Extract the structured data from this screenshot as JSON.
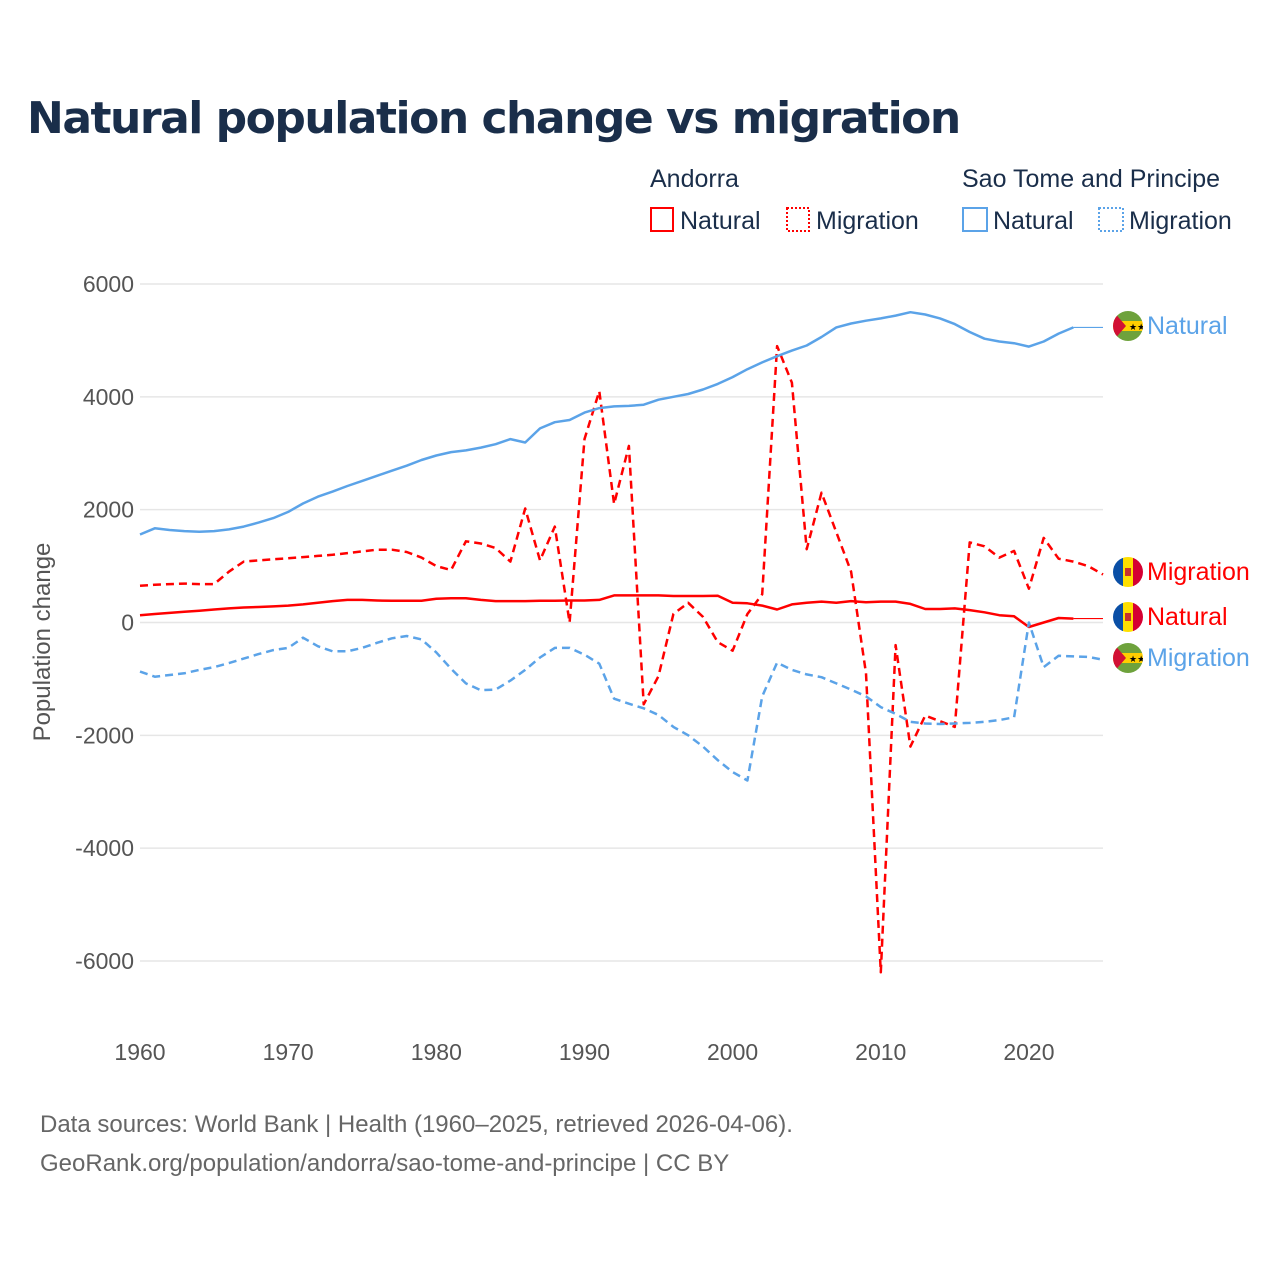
{
  "title": "Natural population change vs migration",
  "legend": {
    "groups": [
      {
        "name": "Andorra",
        "color": "#ff0000",
        "items": [
          "Natural",
          "Migration"
        ]
      },
      {
        "name": "Sao Tome and Principe",
        "color": "#5ba3e8",
        "items": [
          "Natural",
          "Migration"
        ]
      }
    ]
  },
  "footer": {
    "line1": "Data sources: World Bank | Health (1960–2025, retrieved 2026-04-06).",
    "line2": "GeoRank.org/population/andorra/sao-tome-and-principe | CC BY"
  },
  "chart_data": {
    "type": "line",
    "title": "Natural population change vs migration",
    "xlabel": "",
    "ylabel": "Population change",
    "xlim": [
      1960,
      2025
    ],
    "ylim": [
      -7000,
      6500
    ],
    "xticks": [
      1960,
      1970,
      1980,
      1990,
      2000,
      2010,
      2020
    ],
    "yticks": [
      6000,
      4000,
      2000,
      0,
      -2000,
      -4000,
      -6000
    ],
    "grid": true,
    "series": [
      {
        "name": "Andorra Natural",
        "label": "Natural",
        "country": "Andorra",
        "color": "#ff0000",
        "dash": false,
        "start": 1960,
        "extend_to": 2025,
        "values": [
          130,
          150,
          170,
          190,
          210,
          230,
          250,
          265,
          275,
          285,
          300,
          320,
          350,
          380,
          400,
          400,
          390,
          385,
          385,
          385,
          420,
          430,
          430,
          400,
          380,
          380,
          380,
          385,
          385,
          390,
          390,
          400,
          480,
          480,
          480,
          480,
          470,
          470,
          470,
          475,
          350,
          340,
          300,
          230,
          320,
          350,
          370,
          350,
          380,
          360,
          370,
          370,
          330,
          240,
          240,
          250,
          220,
          180,
          130,
          110,
          -80,
          0,
          80,
          70
        ]
      },
      {
        "name": "Andorra Migration",
        "label": "Migration",
        "country": "Andorra",
        "color": "#ff0000",
        "dash": true,
        "start": 1960,
        "values": [
          650,
          670,
          680,
          690,
          680,
          680,
          900,
          1080,
          1100,
          1120,
          1140,
          1160,
          1180,
          1200,
          1230,
          1260,
          1290,
          1290,
          1250,
          1150,
          1000,
          930,
          1440,
          1400,
          1320,
          1080,
          2020,
          1100,
          1700,
          0,
          3250,
          4100,
          2100,
          3130,
          -1450,
          -950,
          150,
          350,
          100,
          -350,
          -500,
          150,
          500,
          4900,
          4250,
          1300,
          2300,
          1600,
          900,
          -900,
          -6200,
          -400,
          -2200,
          -1650,
          -1750,
          -1850,
          1420,
          1350,
          1150,
          1270,
          600,
          1500,
          1130,
          1080,
          1000,
          850
        ]
      },
      {
        "name": "Sao Tome and Principe Natural",
        "label": "Natural",
        "country": "Sao Tome and Principe",
        "color": "#5ba3e8",
        "dash": false,
        "start": 1960,
        "extend_to": 2025,
        "values": [
          1560,
          1670,
          1640,
          1620,
          1610,
          1620,
          1650,
          1700,
          1770,
          1850,
          1960,
          2110,
          2230,
          2320,
          2420,
          2510,
          2600,
          2690,
          2780,
          2880,
          2960,
          3020,
          3050,
          3100,
          3160,
          3250,
          3190,
          3440,
          3550,
          3590,
          3720,
          3800,
          3830,
          3840,
          3860,
          3950,
          4000,
          4050,
          4130,
          4230,
          4350,
          4490,
          4610,
          4720,
          4820,
          4910,
          5060,
          5230,
          5300,
          5350,
          5390,
          5440,
          5500,
          5460,
          5390,
          5290,
          5150,
          5030,
          4980,
          4950,
          4890,
          4980,
          5120,
          5230
        ]
      },
      {
        "name": "Sao Tome and Principe Migration",
        "label": "Migration",
        "country": "Sao Tome and Principe",
        "color": "#5ba3e8",
        "dash": true,
        "start": 1960,
        "values": [
          -870,
          -960,
          -930,
          -900,
          -840,
          -790,
          -720,
          -640,
          -560,
          -490,
          -450,
          -270,
          -420,
          -510,
          -510,
          -450,
          -360,
          -280,
          -240,
          -300,
          -530,
          -820,
          -1080,
          -1200,
          -1190,
          -1030,
          -840,
          -620,
          -450,
          -450,
          -570,
          -730,
          -1350,
          -1440,
          -1520,
          -1640,
          -1850,
          -2000,
          -2200,
          -2440,
          -2650,
          -2800,
          -1310,
          -710,
          -840,
          -920,
          -970,
          -1080,
          -1190,
          -1310,
          -1500,
          -1620,
          -1760,
          -1790,
          -1800,
          -1790,
          -1780,
          -1760,
          -1730,
          -1680,
          0,
          -790,
          -590,
          -600,
          -610,
          -660
        ]
      }
    ]
  }
}
